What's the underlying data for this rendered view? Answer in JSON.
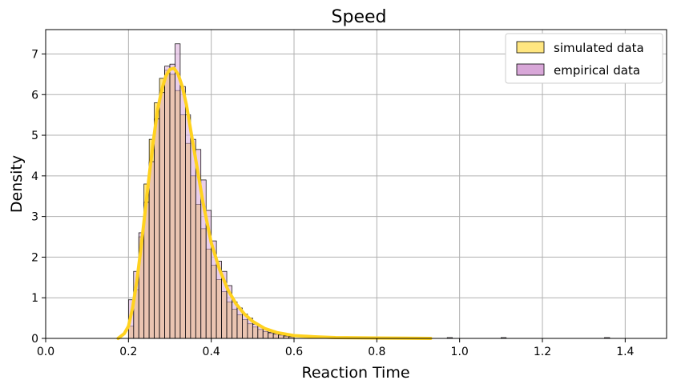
{
  "chart_data": {
    "type": "bar",
    "title": "Speed",
    "xlabel": "Reaction Time",
    "ylabel": "Density",
    "xlim": [
      0.0,
      1.5
    ],
    "ylim": [
      0,
      7.6
    ],
    "xticks": [
      "0.0",
      "0.2",
      "0.4",
      "0.6",
      "0.8",
      "1.0",
      "1.2",
      "1.4"
    ],
    "xtick_values": [
      0.0,
      0.2,
      0.4,
      0.6,
      0.8,
      1.0,
      1.2,
      1.4
    ],
    "yticks": [
      "0",
      "1",
      "2",
      "3",
      "4",
      "5",
      "6",
      "7"
    ],
    "ytick_values": [
      0,
      1,
      2,
      3,
      4,
      5,
      6,
      7
    ],
    "grid": true,
    "legend_position": "top-right",
    "bin_width": 0.0125,
    "series": [
      {
        "name": "simulated data",
        "kind": "histogram",
        "color": "#ffe680",
        "bins_start": [
          0.2,
          0.2125,
          0.225,
          0.2375,
          0.25,
          0.2625,
          0.275,
          0.2875,
          0.3,
          0.3125,
          0.325,
          0.3375,
          0.35,
          0.3625,
          0.375,
          0.3875,
          0.4,
          0.4125,
          0.425,
          0.4375,
          0.45,
          0.4625,
          0.475,
          0.4875,
          0.5,
          0.5125,
          0.525,
          0.5375,
          0.55,
          0.5625,
          0.575,
          0.5875
        ],
        "values": [
          0.3,
          1.2,
          2.5,
          3.8,
          4.9,
          5.8,
          6.4,
          6.6,
          6.5,
          6.1,
          5.5,
          4.8,
          4.0,
          3.3,
          2.7,
          2.2,
          1.8,
          1.45,
          1.15,
          0.9,
          0.72,
          0.58,
          0.46,
          0.36,
          0.28,
          0.22,
          0.17,
          0.13,
          0.1,
          0.08,
          0.06,
          0.05
        ]
      },
      {
        "name": "empirical data",
        "kind": "histogram",
        "color": "#d8a7d8",
        "bins_start": [
          0.2,
          0.2125,
          0.225,
          0.2375,
          0.25,
          0.2625,
          0.275,
          0.2875,
          0.3,
          0.3125,
          0.325,
          0.3375,
          0.35,
          0.3625,
          0.375,
          0.3875,
          0.4,
          0.4125,
          0.425,
          0.4375,
          0.45,
          0.4625,
          0.475,
          0.4875,
          0.5,
          0.5125,
          0.525,
          0.5375,
          0.55,
          0.5625,
          0.575,
          0.5875,
          0.97,
          1.1,
          1.35
        ],
        "values": [
          0.95,
          1.65,
          2.6,
          3.35,
          4.35,
          5.4,
          6.05,
          6.7,
          6.75,
          7.25,
          6.2,
          5.5,
          4.9,
          4.65,
          3.9,
          3.15,
          2.4,
          1.9,
          1.65,
          1.3,
          0.9,
          0.75,
          0.6,
          0.5,
          0.35,
          0.3,
          0.22,
          0.15,
          0.12,
          0.09,
          0.06,
          0.04,
          0.02,
          0.02,
          0.02
        ]
      },
      {
        "name": "",
        "kind": "line",
        "color": "#ffd21f",
        "x": [
          0.175,
          0.19,
          0.2,
          0.21,
          0.22,
          0.23,
          0.24,
          0.25,
          0.26,
          0.27,
          0.28,
          0.29,
          0.3,
          0.31,
          0.32,
          0.33,
          0.34,
          0.35,
          0.36,
          0.37,
          0.38,
          0.39,
          0.4,
          0.42,
          0.44,
          0.46,
          0.48,
          0.5,
          0.53,
          0.56,
          0.6,
          0.65,
          0.7,
          0.8,
          0.93
        ],
        "y": [
          0.0,
          0.12,
          0.3,
          0.75,
          1.4,
          2.2,
          3.1,
          4.0,
          4.85,
          5.6,
          6.1,
          6.45,
          6.62,
          6.65,
          6.5,
          6.2,
          5.75,
          5.15,
          4.55,
          3.95,
          3.35,
          2.85,
          2.35,
          1.7,
          1.2,
          0.85,
          0.6,
          0.42,
          0.24,
          0.14,
          0.07,
          0.04,
          0.02,
          0.01,
          0.0
        ]
      }
    ]
  }
}
